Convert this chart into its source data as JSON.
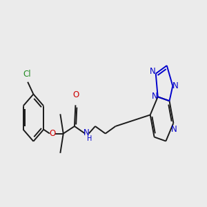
{
  "bg_color": "#ebebeb",
  "black": "#1a1a1a",
  "blue": "#0000cc",
  "red": "#cc0000",
  "green": "#228B22",
  "bond_lw": 1.4,
  "font_size": 8.5,
  "small_font": 7.0,
  "xlim": [
    0,
    10
  ],
  "ylim": [
    3,
    8
  ],
  "figsize": [
    3.0,
    3.0
  ],
  "dpi": 100
}
